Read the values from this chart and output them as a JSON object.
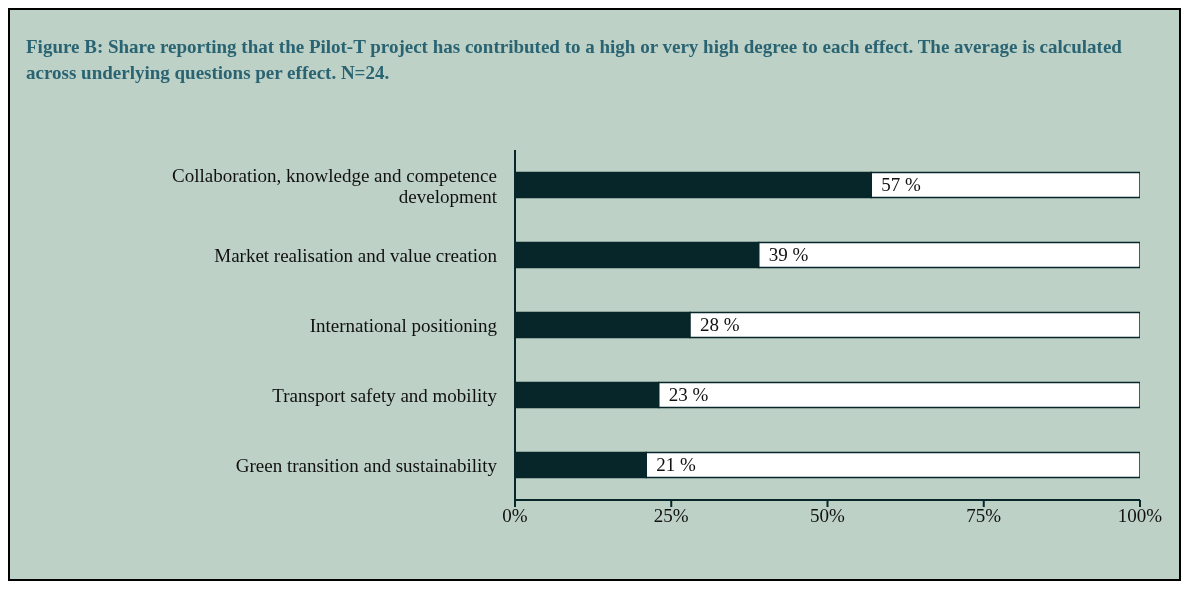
{
  "chart_data": {
    "type": "bar",
    "orientation": "horizontal",
    "stacked": true,
    "title": "Figure B: Share reporting that the Pilot-T project has contributed to a high or very high degree to each effect. The average is calculated across underlying questions per effect. N=24.",
    "categories": [
      "Collaboration, knowledge and competence development",
      "Market realisation and value creation",
      "International positioning",
      "Transport safety and mobility",
      "Green transition and sustainability"
    ],
    "series": [
      {
        "color": "#06262a",
        "values": [
          57,
          39,
          28,
          23,
          21
        ],
        "value_labels": [
          "57 %",
          "39 %",
          "28 %",
          "23 %",
          "21 %"
        ]
      },
      {
        "color": "#ffffff",
        "values": [
          43,
          61,
          72,
          77,
          79
        ]
      }
    ],
    "xlim": [
      0,
      100
    ],
    "xticks": [
      {
        "value": 0,
        "label": "0%"
      },
      {
        "value": 25,
        "label": "25%"
      },
      {
        "value": 50,
        "label": "50%"
      },
      {
        "value": 75,
        "label": "75%"
      },
      {
        "value": 100,
        "label": "100%"
      }
    ]
  }
}
